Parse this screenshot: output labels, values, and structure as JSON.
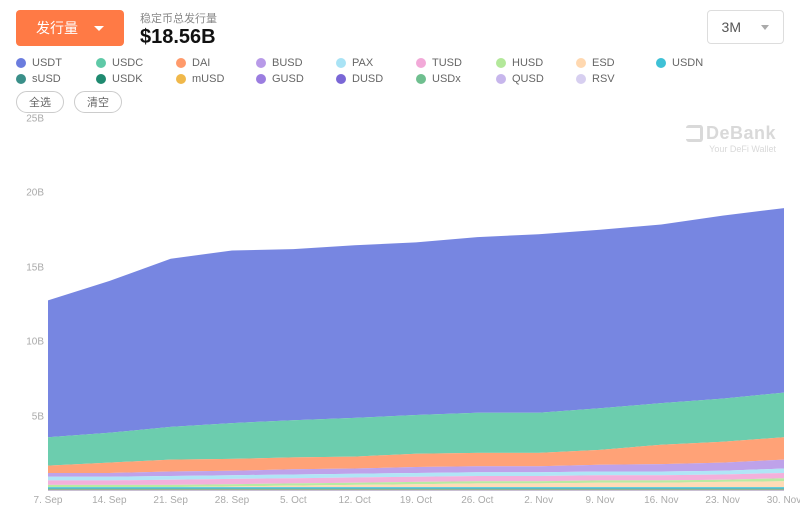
{
  "chart": {
    "type": "area-stacked",
    "button_label": "发行量",
    "subtitle": "稳定币总发行量",
    "value": "$18.56B",
    "period_selected": "3M",
    "select_all_label": "全选",
    "clear_label": "清空",
    "watermark": {
      "brand": "DeBank",
      "tagline": "Your DeFi Wallet"
    },
    "background_color": "#ffffff",
    "axis_text_color": "#aaaaaa",
    "y": {
      "min": 0,
      "max": 25,
      "ticks": [
        5,
        10,
        15,
        20,
        25
      ],
      "suffix": "B"
    },
    "x_labels": [
      "7. Sep",
      "14. Sep",
      "21. Sep",
      "28. Sep",
      "5. Oct",
      "12. Oct",
      "19. Oct",
      "26. Oct",
      "2. Nov",
      "9. Nov",
      "16. Nov",
      "23. Nov",
      "30. Nov"
    ],
    "series": [
      {
        "name": "USDT",
        "color": "#6b7cde",
        "data": [
          9.2,
          10.2,
          11.3,
          11.6,
          11.5,
          11.6,
          11.6,
          11.8,
          12.0,
          12.0,
          12.0,
          12.3,
          12.4
        ]
      },
      {
        "name": "USDC",
        "color": "#5fc9a7",
        "data": [
          1.9,
          2.0,
          2.2,
          2.4,
          2.5,
          2.6,
          2.6,
          2.7,
          2.7,
          2.8,
          2.8,
          2.9,
          3.0
        ]
      },
      {
        "name": "DAI",
        "color": "#ff9a6b",
        "data": [
          0.5,
          0.7,
          0.8,
          0.8,
          0.8,
          0.8,
          0.9,
          0.9,
          0.9,
          1.0,
          1.3,
          1.4,
          1.5
        ]
      },
      {
        "name": "BUSD",
        "color": "#b89ae8",
        "data": [
          0.25,
          0.25,
          0.3,
          0.3,
          0.35,
          0.35,
          0.4,
          0.4,
          0.4,
          0.45,
          0.5,
          0.55,
          0.6
        ]
      },
      {
        "name": "PAX",
        "color": "#a9e3f5",
        "data": [
          0.25,
          0.25,
          0.25,
          0.25,
          0.25,
          0.25,
          0.25,
          0.25,
          0.25,
          0.25,
          0.25,
          0.25,
          0.3
        ]
      },
      {
        "name": "TUSD",
        "color": "#f2a9d8",
        "data": [
          0.3,
          0.3,
          0.35,
          0.35,
          0.35,
          0.35,
          0.35,
          0.35,
          0.35,
          0.35,
          0.35,
          0.35,
          0.35
        ]
      },
      {
        "name": "HUSD",
        "color": "#b3e89a",
        "data": [
          0.15,
          0.15,
          0.15,
          0.15,
          0.15,
          0.15,
          0.15,
          0.15,
          0.15,
          0.15,
          0.15,
          0.15,
          0.2
        ]
      },
      {
        "name": "ESD",
        "color": "#ffd8b0",
        "data": [
          0,
          0,
          0,
          0.05,
          0.1,
          0.15,
          0.2,
          0.25,
          0.25,
          0.3,
          0.3,
          0.35,
          0.4
        ]
      },
      {
        "name": "USDN",
        "color": "#3fc1d6",
        "data": [
          0.1,
          0.1,
          0.1,
          0.1,
          0.1,
          0.1,
          0.1,
          0.1,
          0.1,
          0.1,
          0.1,
          0.1,
          0.1
        ]
      },
      {
        "name": "sUSD",
        "color": "#3a8f89",
        "data": [
          0.05,
          0.05,
          0.05,
          0.05,
          0.05,
          0.05,
          0.05,
          0.05,
          0.05,
          0.05,
          0.05,
          0.05,
          0.05
        ]
      },
      {
        "name": "USDK",
        "color": "#1f8a70",
        "data": [
          0.03,
          0.03,
          0.03,
          0.03,
          0.03,
          0.03,
          0.03,
          0.03,
          0.03,
          0.03,
          0.03,
          0.03,
          0.03
        ]
      },
      {
        "name": "mUSD",
        "color": "#f0b84a",
        "data": [
          0.03,
          0.03,
          0.03,
          0.03,
          0.03,
          0.03,
          0.03,
          0.03,
          0.03,
          0.03,
          0.03,
          0.03,
          0.03
        ]
      },
      {
        "name": "GUSD",
        "color": "#9b7de0",
        "data": [
          0.01,
          0.01,
          0.01,
          0.01,
          0.01,
          0.01,
          0.01,
          0.01,
          0.01,
          0.01,
          0.01,
          0.01,
          0.01
        ]
      },
      {
        "name": "DUSD",
        "color": "#7a67d6",
        "data": [
          0.01,
          0.01,
          0.01,
          0.01,
          0.01,
          0.01,
          0.01,
          0.01,
          0.01,
          0.01,
          0.01,
          0.01,
          0.01
        ]
      },
      {
        "name": "USDx",
        "color": "#6fbf8f",
        "data": [
          0.01,
          0.01,
          0.01,
          0.01,
          0.01,
          0.01,
          0.01,
          0.01,
          0.01,
          0.01,
          0.01,
          0.01,
          0.01
        ]
      },
      {
        "name": "QUSD",
        "color": "#c7b6ec",
        "data": [
          0.01,
          0.01,
          0.01,
          0.01,
          0.01,
          0.01,
          0.01,
          0.01,
          0.01,
          0.01,
          0.01,
          0.01,
          0.01
        ]
      },
      {
        "name": "RSV",
        "color": "#d7cff0",
        "data": [
          0.01,
          0.01,
          0.01,
          0.01,
          0.01,
          0.01,
          0.01,
          0.01,
          0.01,
          0.01,
          0.01,
          0.01,
          0.01
        ]
      }
    ]
  }
}
